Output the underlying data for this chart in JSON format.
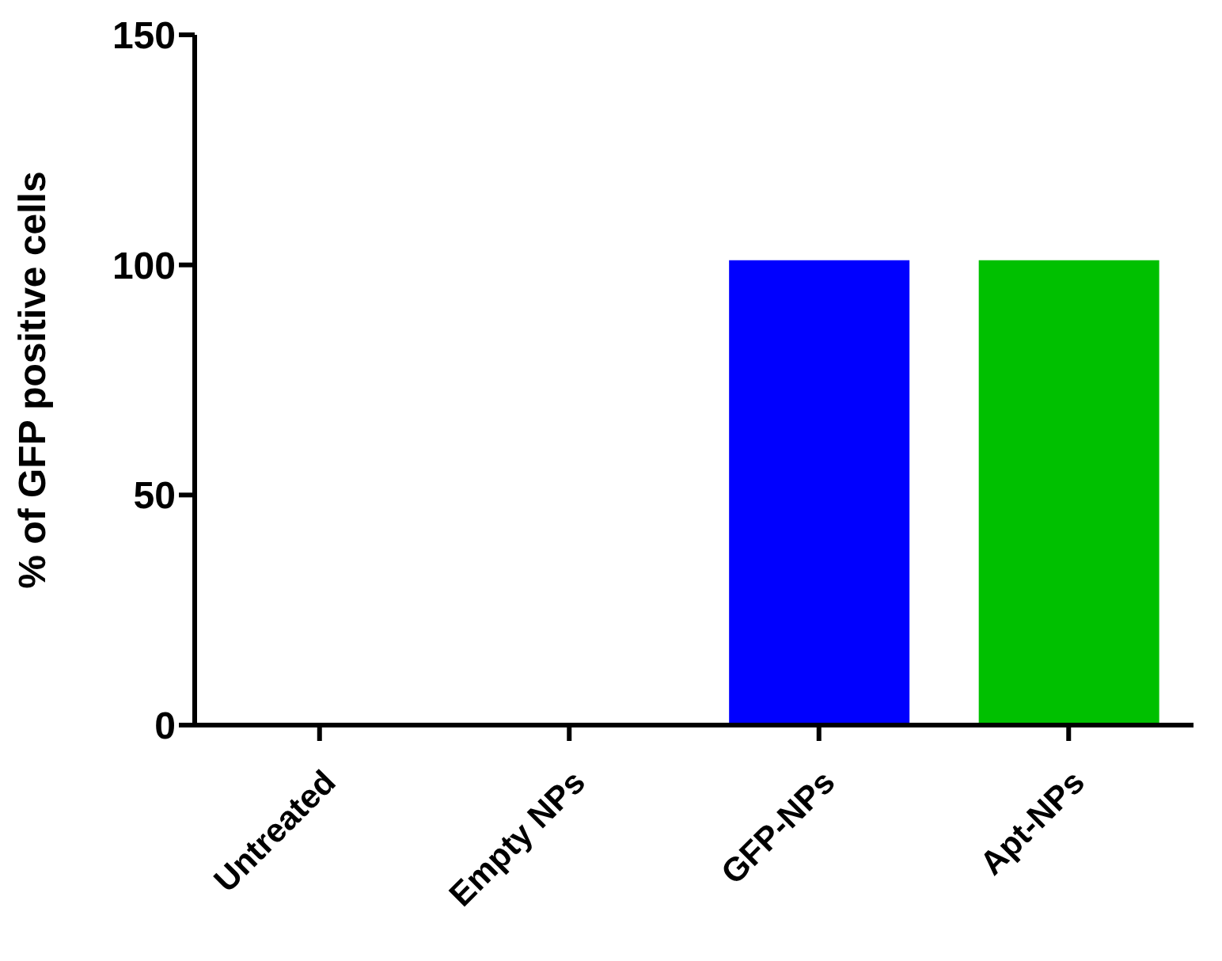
{
  "chart_data": {
    "type": "bar",
    "ylabel": "% of GFP positive cells",
    "categories": [
      "Untreated",
      "Empty NPs",
      "GFP-NPs",
      "Apt-NPs"
    ],
    "values": [
      0,
      0,
      101,
      101
    ],
    "colors": [
      null,
      null,
      "#0000ff",
      "#00c000"
    ],
    "ylim": [
      0,
      150
    ],
    "yticks": [
      0,
      50,
      100,
      150
    ],
    "grid": false,
    "legend": false
  }
}
